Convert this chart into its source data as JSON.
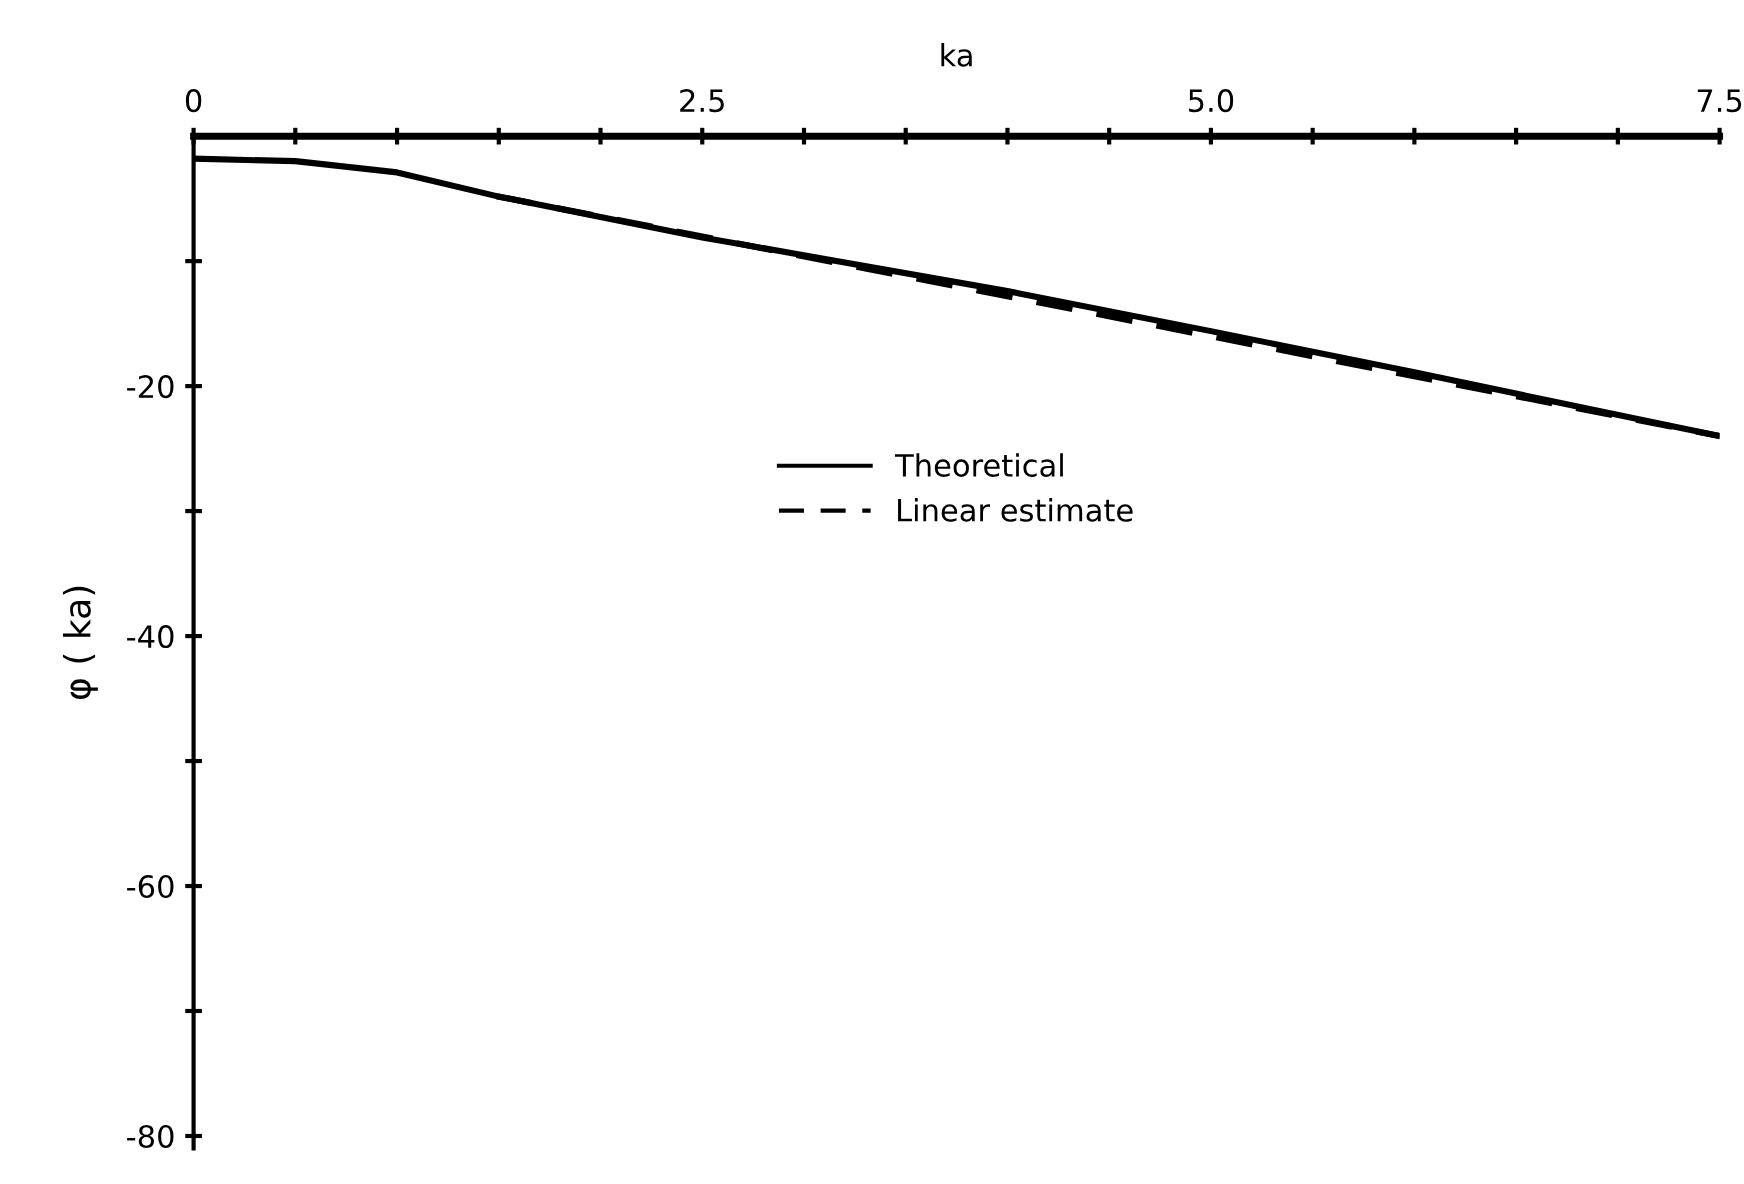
{
  "chart_data": {
    "type": "line",
    "xlabel": "ka",
    "ylabel": "φ ( ka)",
    "xlim": [
      0,
      7.5
    ],
    "ylim": [
      -81,
      0
    ],
    "xticks": [
      0,
      {
        "value": 0.5,
        "label": null
      },
      {
        "value": 1.0,
        "label": null
      },
      {
        "value": 1.5,
        "label": null
      },
      {
        "value": 2.0,
        "label": null
      },
      2.5,
      {
        "value": 3.0,
        "label": null
      },
      {
        "value": 3.5,
        "label": null
      },
      {
        "value": 4.0,
        "label": null
      },
      {
        "value": 4.5,
        "label": null
      },
      {
        "value": 5.0,
        "label": "5.0"
      },
      {
        "value": 5.5,
        "label": null
      },
      {
        "value": 6.0,
        "label": null
      },
      {
        "value": 6.5,
        "label": null
      },
      {
        "value": 7.0,
        "label": null
      },
      7.5
    ],
    "yticks": [
      {
        "value": -10,
        "label": null
      },
      -20,
      {
        "value": -30,
        "label": null
      },
      -40,
      {
        "value": -50,
        "label": null
      },
      -60,
      {
        "value": -70,
        "label": null
      },
      -80
    ],
    "series": [
      {
        "name": "Theoretical",
        "color": "#000000",
        "line_style": "solid",
        "x": [
          0,
          0.5,
          1.0,
          1.49,
          2.5,
          4.0,
          5.0,
          6.0,
          7.5
        ],
        "values": [
          -1.8,
          -2.0,
          -2.9,
          -4.8,
          -8.1,
          -12.4,
          -15.6,
          -18.9,
          -24.0
        ]
      },
      {
        "name": "Linear estimate",
        "color": "#000000",
        "line_style": "dashed",
        "x": [
          1.49,
          7.5
        ],
        "values": [
          -4.8,
          -24.0
        ]
      }
    ],
    "legend": "center",
    "grid": false
  }
}
